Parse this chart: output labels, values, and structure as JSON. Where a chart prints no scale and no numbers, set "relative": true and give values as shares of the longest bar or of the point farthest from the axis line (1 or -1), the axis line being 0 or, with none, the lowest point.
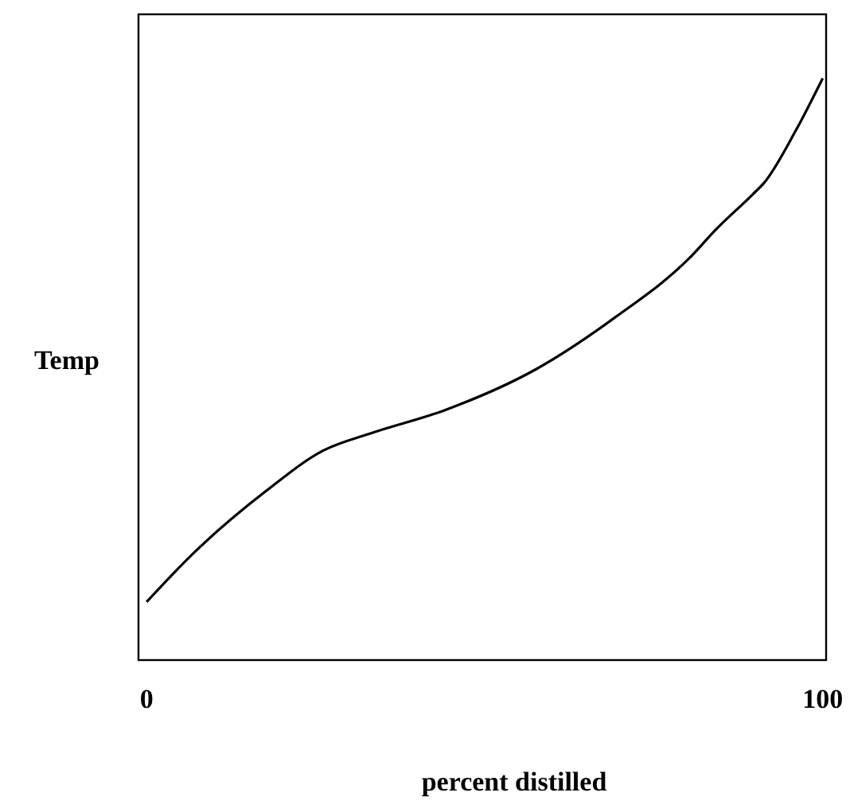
{
  "chart_data": {
    "type": "line",
    "xlabel": "percent distilled",
    "ylabel": "Temp",
    "relative": true,
    "x": [
      0,
      6.6,
      17.6,
      26.1,
      33.2,
      44.2,
      57.6,
      69.4,
      80.2,
      84.2,
      89.6,
      91.3,
      96,
      100
    ],
    "series": [
      {
        "color": "#000000",
        "values": [
          0.1,
          0.18,
          0.29,
          0.36,
          0.39,
          0.43,
          0.5,
          0.59,
          0.69,
          0.74,
          0.8,
          0.82,
          0.91,
          1
        ]
      }
    ],
    "xlim": [
      -1.2,
      100.5
    ],
    "xticks": [
      0,
      100
    ],
    "grid": false,
    "marker": "none",
    "line_style": "solid"
  }
}
